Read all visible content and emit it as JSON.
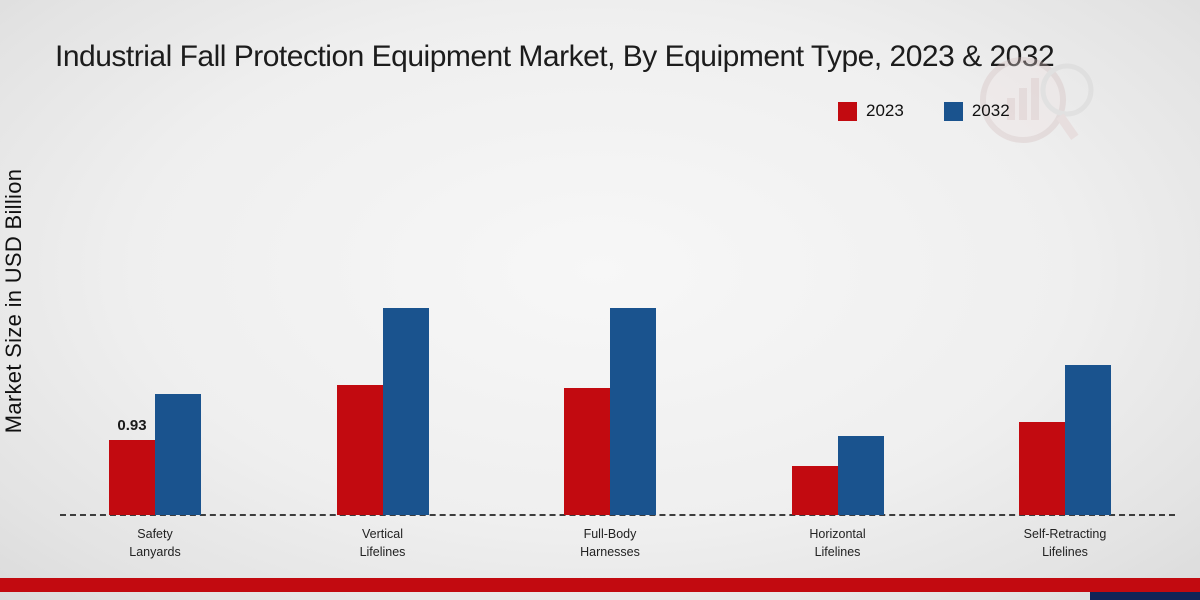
{
  "colors": {
    "series_2023": "#c20a10",
    "series_2032": "#1a538e",
    "footer_band": "#c20a10",
    "footer_corner": "#122457"
  },
  "footer": {
    "red_band": "decorative-red-strip",
    "navy_corner": "decorative-navy-corner"
  },
  "chart_data": {
    "type": "bar",
    "title": "Industrial Fall Protection Equipment Market, By Equipment Type, 2023 & 2032",
    "xlabel": "",
    "ylabel": "Market Size in USD Billion",
    "categories": [
      "Safety Lanyards",
      "Vertical Lifelines",
      "Full-Body Harnesses",
      "Horizontal Lifelines",
      "Self-Retracting Lifelines"
    ],
    "series": [
      {
        "name": "2023",
        "color": "#c20a10",
        "values": [
          0.93,
          1.6,
          1.57,
          0.61,
          1.15
        ]
      },
      {
        "name": "2032",
        "color": "#1a538e",
        "values": [
          1.5,
          2.55,
          2.55,
          0.97,
          1.85
        ]
      }
    ],
    "data_labels": [
      {
        "series": "2023",
        "category": "Safety Lanyards",
        "text": "0.93"
      }
    ],
    "ylim": [
      0,
      3
    ],
    "grid": false,
    "baseline_style": "dashed",
    "legend_position": "top-right"
  }
}
